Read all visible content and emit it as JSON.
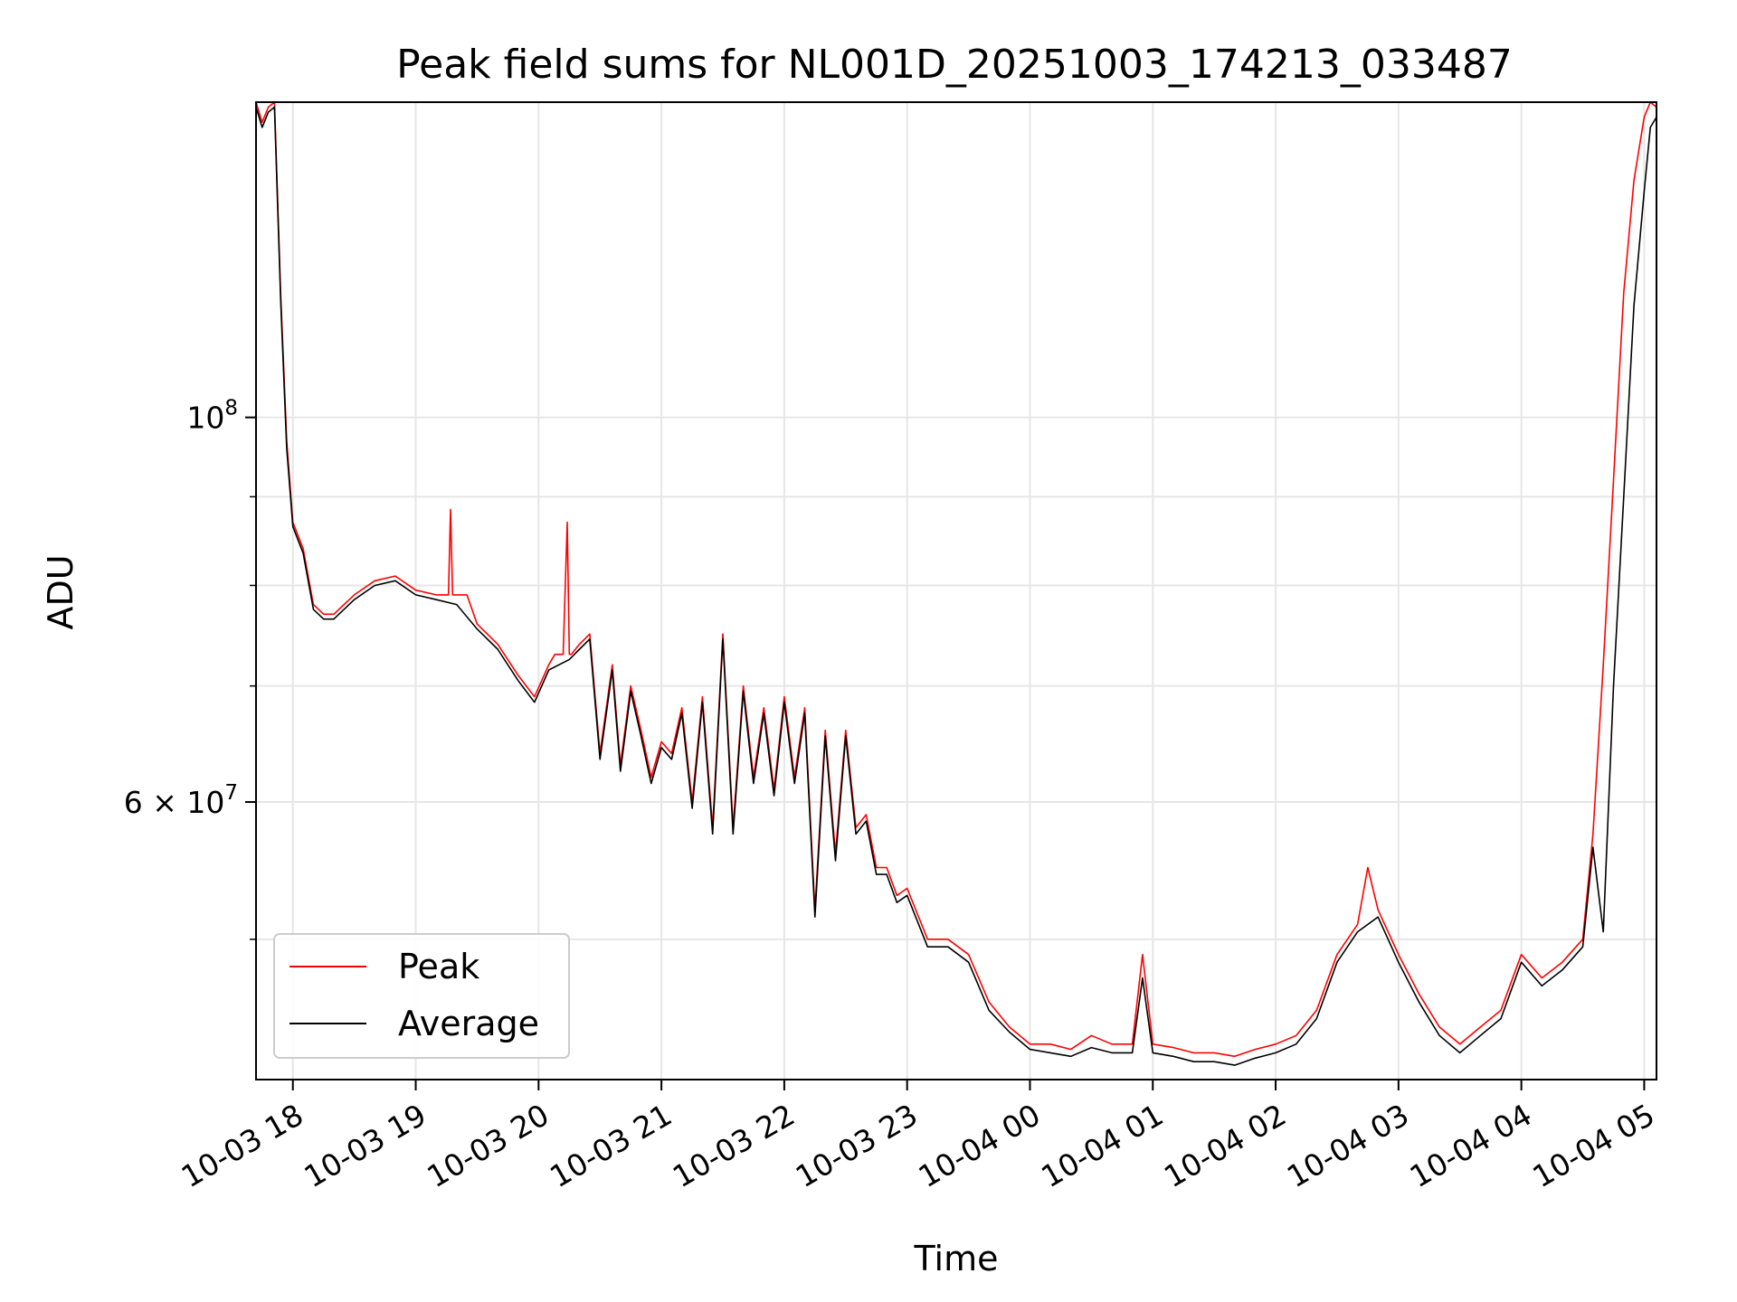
{
  "chart_data": {
    "type": "line",
    "title": "Peak field sums for NL001D_20251003_174213_033487",
    "xlabel": "Time",
    "ylabel": "ADU",
    "yscale": "log",
    "grid": true,
    "legend_placement": "lower-left",
    "xlim": [
      "2025-10-03 17:42",
      "2025-10-04 05:06"
    ],
    "ylim": [
      41500000,
      152000000
    ],
    "x_tick_labels": [
      {
        "at": "2025-10-03 18:00",
        "label": "10-03 18"
      },
      {
        "at": "2025-10-03 19:00",
        "label": "10-03 19"
      },
      {
        "at": "2025-10-03 20:00",
        "label": "10-03 20"
      },
      {
        "at": "2025-10-03 21:00",
        "label": "10-03 21"
      },
      {
        "at": "2025-10-03 22:00",
        "label": "10-03 22"
      },
      {
        "at": "2025-10-03 23:00",
        "label": "10-03 23"
      },
      {
        "at": "2025-10-04 00:00",
        "label": "10-04 00"
      },
      {
        "at": "2025-10-04 01:00",
        "label": "10-04 01"
      },
      {
        "at": "2025-10-04 02:00",
        "label": "10-04 02"
      },
      {
        "at": "2025-10-04 03:00",
        "label": "10-04 03"
      },
      {
        "at": "2025-10-04 04:00",
        "label": "10-04 04"
      },
      {
        "at": "2025-10-04 05:00",
        "label": "10-04 05"
      }
    ],
    "y_major_ticks": [
      {
        "value": 100000000,
        "mantissa": "10",
        "exponent": "8"
      },
      {
        "value": 60000000,
        "mantissa": "6 × 10",
        "exponent": "7"
      }
    ],
    "y_minor_ticks": [
      50000000,
      70000000,
      80000000,
      90000000
    ],
    "series": [
      {
        "name": "Peak",
        "color": "#ff0000",
        "x": [
          "2025-10-03 17:42",
          "2025-10-03 17:45",
          "2025-10-03 17:48",
          "2025-10-03 17:51",
          "2025-10-03 17:54",
          "2025-10-03 17:57",
          "2025-10-03 18:00",
          "2025-10-03 18:05",
          "2025-10-03 18:10",
          "2025-10-03 18:15",
          "2025-10-03 18:20",
          "2025-10-03 18:30",
          "2025-10-03 18:40",
          "2025-10-03 18:50",
          "2025-10-03 19:00",
          "2025-10-03 19:10",
          "2025-10-03 19:16",
          "2025-10-03 19:17",
          "2025-10-03 19:18",
          "2025-10-03 19:25",
          "2025-10-03 19:30",
          "2025-10-03 19:40",
          "2025-10-03 19:50",
          "2025-10-03 19:58",
          "2025-10-03 20:05",
          "2025-10-03 20:08",
          "2025-10-03 20:12",
          "2025-10-03 20:14",
          "2025-10-03 20:15",
          "2025-10-03 20:16",
          "2025-10-03 20:20",
          "2025-10-03 20:25",
          "2025-10-03 20:30",
          "2025-10-03 20:36",
          "2025-10-03 20:40",
          "2025-10-03 20:45",
          "2025-10-03 20:50",
          "2025-10-03 20:55",
          "2025-10-03 21:00",
          "2025-10-03 21:05",
          "2025-10-03 21:10",
          "2025-10-03 21:15",
          "2025-10-03 21:20",
          "2025-10-03 21:25",
          "2025-10-03 21:30",
          "2025-10-03 21:35",
          "2025-10-03 21:40",
          "2025-10-03 21:45",
          "2025-10-03 21:50",
          "2025-10-03 21:55",
          "2025-10-03 22:00",
          "2025-10-03 22:05",
          "2025-10-03 22:10",
          "2025-10-03 22:15",
          "2025-10-03 22:20",
          "2025-10-03 22:25",
          "2025-10-03 22:30",
          "2025-10-03 22:35",
          "2025-10-03 22:40",
          "2025-10-03 22:45",
          "2025-10-03 22:50",
          "2025-10-03 22:55",
          "2025-10-03 23:00",
          "2025-10-03 23:10",
          "2025-10-03 23:20",
          "2025-10-03 23:30",
          "2025-10-03 23:40",
          "2025-10-03 23:50",
          "2025-10-04 00:00",
          "2025-10-04 00:10",
          "2025-10-04 00:20",
          "2025-10-04 00:30",
          "2025-10-04 00:40",
          "2025-10-04 00:50",
          "2025-10-04 00:55",
          "2025-10-04 01:00",
          "2025-10-04 01:10",
          "2025-10-04 01:20",
          "2025-10-04 01:30",
          "2025-10-04 01:40",
          "2025-10-04 01:50",
          "2025-10-04 02:00",
          "2025-10-04 02:10",
          "2025-10-04 02:20",
          "2025-10-04 02:30",
          "2025-10-04 02:40",
          "2025-10-04 02:45",
          "2025-10-04 02:50",
          "2025-10-04 03:00",
          "2025-10-04 03:10",
          "2025-10-04 03:20",
          "2025-10-04 03:30",
          "2025-10-04 03:40",
          "2025-10-04 03:50",
          "2025-10-04 04:00",
          "2025-10-04 04:10",
          "2025-10-04 04:20",
          "2025-10-04 04:30",
          "2025-10-04 04:35",
          "2025-10-04 04:40",
          "2025-10-04 04:45",
          "2025-10-04 04:50",
          "2025-10-04 04:55",
          "2025-10-04 05:00",
          "2025-10-04 05:03",
          "2025-10-04 05:06"
        ],
        "values": [
          152000000,
          148000000,
          151000000,
          152000000,
          118000000,
          97000000,
          87000000,
          84000000,
          78000000,
          77000000,
          77000000,
          79000000,
          80500000,
          81000000,
          79500000,
          79000000,
          79000000,
          88500000,
          79000000,
          79000000,
          76000000,
          74000000,
          71000000,
          69000000,
          72000000,
          73000000,
          73000000,
          87000000,
          73000000,
          73000000,
          74000000,
          75000000,
          64000000,
          72000000,
          63000000,
          70000000,
          66000000,
          62000000,
          65000000,
          64000000,
          68000000,
          60000000,
          69000000,
          58000000,
          75000000,
          58000000,
          70000000,
          62000000,
          68000000,
          61000000,
          69000000,
          62000000,
          68000000,
          52000000,
          66000000,
          56000000,
          66000000,
          58000000,
          59000000,
          55000000,
          55000000,
          53000000,
          53500000,
          50000000,
          50000000,
          49000000,
          46000000,
          44500000,
          43500000,
          43500000,
          43200000,
          44000000,
          43500000,
          43500000,
          49000000,
          43500000,
          43300000,
          43000000,
          43000000,
          42800000,
          43200000,
          43500000,
          44000000,
          45500000,
          49000000,
          51000000,
          55000000,
          52000000,
          49000000,
          46500000,
          44500000,
          43500000,
          44500000,
          45500000,
          49000000,
          47500000,
          48500000,
          50000000,
          57500000,
          72000000,
          92000000,
          118000000,
          137000000,
          149000000,
          152000000,
          151000000
        ]
      },
      {
        "name": "Average",
        "color": "#000000",
        "x": [
          "2025-10-03 17:42",
          "2025-10-03 17:45",
          "2025-10-03 17:48",
          "2025-10-03 17:51",
          "2025-10-03 17:54",
          "2025-10-03 17:57",
          "2025-10-03 18:00",
          "2025-10-03 18:05",
          "2025-10-03 18:10",
          "2025-10-03 18:15",
          "2025-10-03 18:20",
          "2025-10-03 18:30",
          "2025-10-03 18:40",
          "2025-10-03 18:50",
          "2025-10-03 19:00",
          "2025-10-03 19:10",
          "2025-10-03 19:20",
          "2025-10-03 19:30",
          "2025-10-03 19:40",
          "2025-10-03 19:50",
          "2025-10-03 19:58",
          "2025-10-03 20:05",
          "2025-10-03 20:15",
          "2025-10-03 20:20",
          "2025-10-03 20:25",
          "2025-10-03 20:30",
          "2025-10-03 20:36",
          "2025-10-03 20:40",
          "2025-10-03 20:45",
          "2025-10-03 20:50",
          "2025-10-03 20:55",
          "2025-10-03 21:00",
          "2025-10-03 21:05",
          "2025-10-03 21:10",
          "2025-10-03 21:15",
          "2025-10-03 21:20",
          "2025-10-03 21:25",
          "2025-10-03 21:30",
          "2025-10-03 21:35",
          "2025-10-03 21:40",
          "2025-10-03 21:45",
          "2025-10-03 21:50",
          "2025-10-03 21:55",
          "2025-10-03 22:00",
          "2025-10-03 22:05",
          "2025-10-03 22:10",
          "2025-10-03 22:15",
          "2025-10-03 22:20",
          "2025-10-03 22:25",
          "2025-10-03 22:30",
          "2025-10-03 22:35",
          "2025-10-03 22:40",
          "2025-10-03 22:45",
          "2025-10-03 22:50",
          "2025-10-03 22:55",
          "2025-10-03 23:00",
          "2025-10-03 23:10",
          "2025-10-03 23:20",
          "2025-10-03 23:30",
          "2025-10-03 23:40",
          "2025-10-03 23:50",
          "2025-10-04 00:00",
          "2025-10-04 00:10",
          "2025-10-04 00:20",
          "2025-10-04 00:30",
          "2025-10-04 00:40",
          "2025-10-04 00:50",
          "2025-10-04 00:55",
          "2025-10-04 01:00",
          "2025-10-04 01:10",
          "2025-10-04 01:20",
          "2025-10-04 01:30",
          "2025-10-04 01:40",
          "2025-10-04 01:50",
          "2025-10-04 02:00",
          "2025-10-04 02:10",
          "2025-10-04 02:20",
          "2025-10-04 02:30",
          "2025-10-04 02:40",
          "2025-10-04 02:50",
          "2025-10-04 03:00",
          "2025-10-04 03:10",
          "2025-10-04 03:20",
          "2025-10-04 03:30",
          "2025-10-04 03:40",
          "2025-10-04 03:50",
          "2025-10-04 04:00",
          "2025-10-04 04:10",
          "2025-10-04 04:20",
          "2025-10-04 04:30",
          "2025-10-04 04:35",
          "2025-10-04 04:40",
          "2025-10-04 04:45",
          "2025-10-04 04:50",
          "2025-10-04 04:55",
          "2025-10-04 05:00",
          "2025-10-04 05:03",
          "2025-10-04 05:06"
        ],
        "values": [
          151000000,
          147000000,
          150000000,
          151000000,
          117000000,
          96000000,
          86500000,
          83500000,
          77500000,
          76500000,
          76500000,
          78500000,
          80000000,
          80500000,
          79000000,
          78500000,
          78000000,
          75500000,
          73500000,
          70500000,
          68500000,
          71500000,
          72500000,
          73500000,
          74500000,
          63500000,
          71500000,
          62500000,
          69500000,
          65500000,
          61500000,
          64500000,
          63500000,
          67500000,
          59500000,
          68500000,
          57500000,
          74500000,
          57500000,
          69500000,
          61500000,
          67500000,
          60500000,
          68500000,
          61500000,
          67500000,
          51500000,
          65500000,
          55500000,
          65500000,
          57500000,
          58500000,
          54500000,
          54500000,
          52500000,
          53000000,
          49500000,
          49500000,
          48500000,
          45500000,
          44200000,
          43200000,
          43000000,
          42800000,
          43300000,
          43000000,
          43000000,
          47500000,
          43000000,
          42800000,
          42500000,
          42500000,
          42300000,
          42700000,
          43000000,
          43500000,
          45000000,
          48500000,
          50500000,
          51500000,
          48500000,
          46000000,
          44000000,
          43000000,
          44000000,
          45000000,
          48500000,
          47000000,
          48000000,
          49500000,
          56500000,
          50500000,
          70000000,
          90000000,
          116000000,
          135000000,
          147000000,
          149000000
        ]
      }
    ]
  }
}
